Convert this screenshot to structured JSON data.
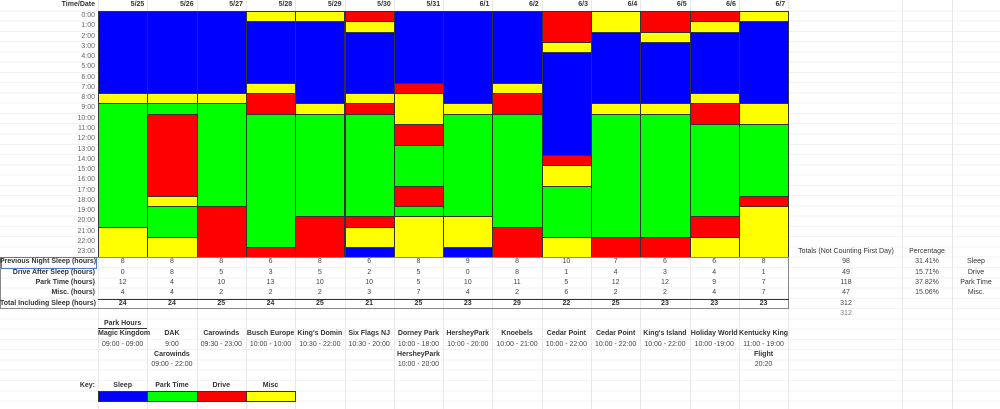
{
  "header": {
    "corner": "Time/Date"
  },
  "dates": [
    "5/25",
    "5/26",
    "5/27",
    "5/28",
    "5/29",
    "5/30",
    "5/31",
    "6/1",
    "6/2",
    "6/3",
    "6/4",
    "6/5",
    "6/6",
    "6/7"
  ],
  "hours": [
    "0:00",
    "1:00",
    "2:00",
    "3:00",
    "4:00",
    "5:00",
    "6:00",
    "7:00",
    "8:00",
    "9:00",
    "10:00",
    "11:00",
    "12:00",
    "13:00",
    "14:00",
    "15:00",
    "16:00",
    "17:00",
    "18:00",
    "19:00",
    "20:00",
    "21:00",
    "22:00",
    "23:00"
  ],
  "activity_codes": {
    "S": "Sleep",
    "P": "Park Time",
    "D": "Drive",
    "M": "Misc"
  },
  "colors": {
    "S": "#0000ff",
    "P": "#00ff00",
    "D": "#ff0000",
    "M": "#ffff00"
  },
  "schedule": [
    "SSSSSSSSMPPPPPPPPPPPPMMM",
    "SSSSSSSSMPDDDDDDDDMPPPMM",
    "SSSSSSSSMPPPPPPPPPPDDDDD",
    "MSSSSSSMDDPPPPPPPPPPPPPD",
    "MSSSSSSSSMPPPPPPPPPPDDDD",
    "DMSSSSSSMDPPPPPPPPPPDMMS",
    "SSSSSSSDMMMDDPPPPDDPMMMM",
    "SSSSSSSSSMPPPPPPPPPPMMMS",
    "SSSSSSSMDDPPPPPPPPPPPDDD",
    "DDDMSSSSSSSSSSDMMPPPPPMM",
    "MMSSSSSSSMPPPPPPPPPPPPDD",
    "DDMSSSSSSMPPPPPPPPPPPPDD",
    "DMSSSSSSMDDPPPPPPPPPDDMM",
    "MSSSSSSSSMMPPPPPPPDMMMMM"
  ],
  "summary": {
    "rows": [
      {
        "label": "Previous Night Sleep (hours)",
        "values": [
          "8",
          "8",
          "8",
          "6",
          "8",
          "6",
          "8",
          "9",
          "8",
          "10",
          "7",
          "6",
          "6",
          "8"
        ]
      },
      {
        "label": "Drive After Sleep (hours)",
        "values": [
          "0",
          "8",
          "5",
          "3",
          "5",
          "2",
          "5",
          "0",
          "8",
          "1",
          "4",
          "3",
          "4",
          "1"
        ]
      },
      {
        "label": "Park Time (hours)",
        "values": [
          "12",
          "4",
          "10",
          "13",
          "10",
          "10",
          "5",
          "10",
          "11",
          "5",
          "12",
          "12",
          "9",
          "7"
        ]
      },
      {
        "label": "Misc. (hours)",
        "values": [
          "4",
          "4",
          "2",
          "2",
          "2",
          "3",
          "7",
          "4",
          "2",
          "6",
          "2",
          "2",
          "4",
          "7"
        ]
      }
    ],
    "total": {
      "label": "Total Including Sleep (hours)",
      "values": [
        "24",
        "24",
        "25",
        "24",
        "25",
        "21",
        "25",
        "23",
        "29",
        "22",
        "25",
        "23",
        "23",
        "23"
      ]
    }
  },
  "totals": {
    "header": "Totals (Not Counting First Day)",
    "pct_header": "Percentage",
    "rows": [
      {
        "value": "98",
        "pct": "31.41%",
        "label": "Sleep"
      },
      {
        "value": "49",
        "pct": "15.71%",
        "label": "Drive"
      },
      {
        "value": "118",
        "pct": "37.82%",
        "label": "Park Time"
      },
      {
        "value": "47",
        "pct": "15.06%",
        "label": "Misc."
      }
    ],
    "sum": "312",
    "sum2": "312"
  },
  "park_hours": {
    "title": "Park Hours",
    "entries": [
      {
        "name": "Magic Kingdom",
        "hours": "09:00 - 09:00"
      },
      {
        "name": "DAK",
        "hours": "9:00",
        "name2": "Carowinds",
        "hours2": "09:00 - 22:00"
      },
      {
        "name": "Carowinds",
        "hours": "09:30 - 23:00"
      },
      {
        "name": "Busch Europe",
        "hours": "10:00 - 10:00"
      },
      {
        "name": "King's Domin",
        "hours": "10:30 - 22:00"
      },
      {
        "name": "Six Flags NJ",
        "hours": "10:30 - 20:00"
      },
      {
        "name": "Dorney Park",
        "hours": "10:00 - 18:00",
        "name2": "HersheyPark",
        "hours2": "10:00 - 20:00"
      },
      {
        "name": "HersheyPark",
        "hours": "10:00 - 20:00"
      },
      {
        "name": "Knoebels",
        "hours": "10:00 - 21:00"
      },
      {
        "name": "Cedar Point",
        "hours": "10:00 - 22:00"
      },
      {
        "name": "Cedar Point",
        "hours": "10:00 - 22:00"
      },
      {
        "name": "King's Island",
        "hours": "10:00 - 22:00"
      },
      {
        "name": "Holiday World",
        "hours": "10:00 -19:00"
      },
      {
        "name": "Kentucky King",
        "hours": "11:00 - 19:00",
        "name2": "Flight",
        "hours2": "20:20"
      }
    ]
  },
  "key": {
    "label": "Key:",
    "items": [
      {
        "code": "S",
        "label": "Sleep"
      },
      {
        "code": "P",
        "label": "Park Time"
      },
      {
        "code": "D",
        "label": "Drive"
      },
      {
        "code": "M",
        "label": "Misc"
      }
    ]
  }
}
